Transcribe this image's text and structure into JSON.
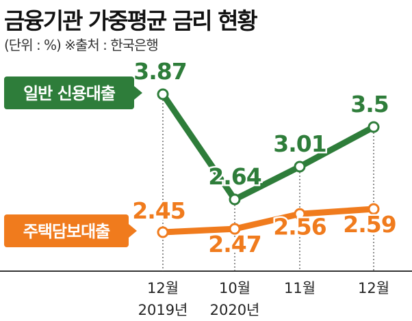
{
  "title": "금융기관 가중평균 금리 현황",
  "subtitle": "(단위 : %) ※출처 : 한국은행",
  "colors": {
    "credit": "#2e7d3a",
    "mortgage": "#f07b1d",
    "outline": "#ffffff",
    "axis": "#333333"
  },
  "chart_data": {
    "type": "line",
    "title": "금융기관 가중평균 금리 현황",
    "categories": [
      "12월\n2019년",
      "10월\n2020년",
      "11월",
      "12월"
    ],
    "x_labels": [
      {
        "month": "12월",
        "year": "2019년"
      },
      {
        "month": "10월",
        "year": "2020년"
      },
      {
        "month": "11월",
        "year": ""
      },
      {
        "month": "12월",
        "year": ""
      }
    ],
    "ylabel": "%",
    "grid": false,
    "series": [
      {
        "name": "일반 신용대출",
        "values": [
          3.87,
          2.64,
          3.01,
          3.5
        ],
        "value_labels": [
          "3.87",
          "2.64",
          "3.01",
          "3.5"
        ]
      },
      {
        "name": "주택담보대출",
        "values": [
          2.45,
          2.47,
          2.56,
          2.59
        ],
        "value_labels": [
          "2.45",
          "2.47",
          "2.56",
          "2.59"
        ]
      }
    ]
  }
}
